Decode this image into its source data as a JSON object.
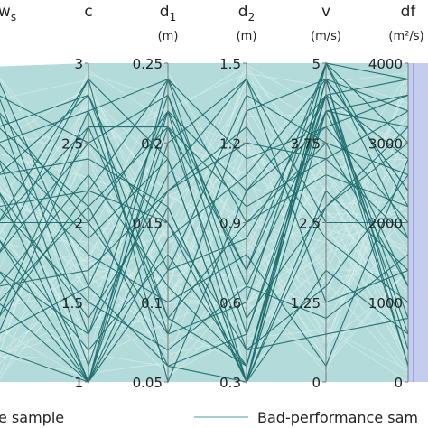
{
  "chart_data": {
    "type": "parallel_coordinates",
    "axes": [
      {
        "title": "w",
        "title_sub": "s",
        "unit": "",
        "range": [
          0,
          4
        ],
        "ticks": []
      },
      {
        "title": "c",
        "title_sub": "",
        "unit": "",
        "range": [
          1,
          3
        ],
        "ticks": [
          "3",
          "2.5",
          "2",
          "1.5",
          "1"
        ]
      },
      {
        "title": "d",
        "title_sub": "1",
        "unit": "(m)",
        "range": [
          0.05,
          0.25
        ],
        "ticks": [
          "0.25",
          "0.2",
          "0.15",
          "0.1",
          "0.05"
        ]
      },
      {
        "title": "d",
        "title_sub": "2",
        "unit": "(m)",
        "range": [
          0.3,
          1.5
        ],
        "ticks": [
          "1.5",
          "1.2",
          "0.9",
          "0.6",
          "0.3"
        ]
      },
      {
        "title": "v",
        "title_sub": "",
        "unit": "(m/s)",
        "range": [
          0,
          5
        ],
        "ticks": [
          "5",
          "3.75",
          "2.5",
          "1.25",
          "0"
        ]
      },
      {
        "title": "df",
        "title_sub": "",
        "unit": "(m²/s)",
        "range": [
          0,
          4000
        ],
        "ticks": [
          "4000",
          "3000",
          "2000",
          "1000",
          "0"
        ]
      }
    ],
    "legend": [
      {
        "label": "e sample",
        "color": "#1e6e70"
      },
      {
        "label": "Bad-performance sam",
        "color": "#9fcfcf"
      }
    ],
    "colors": {
      "bad_band": "#b2dbd9",
      "bad_line": "#d4ecea",
      "good_line": "#1e6e70",
      "df_band": "#c5cdef",
      "df_band_edge": "#8a98d8",
      "axis": "#777777"
    },
    "good_samples": [
      [
        0.9,
        0.15,
        0.9,
        0.3,
        0.85,
        0.3
      ],
      [
        0.7,
        0.0,
        0.85,
        0.6,
        0.8,
        0.9
      ],
      [
        0.5,
        0.5,
        0.15,
        0.85,
        0.95,
        0.6
      ],
      [
        0.4,
        0.95,
        0.0,
        0.6,
        0.9,
        0.2
      ],
      [
        0.2,
        0.6,
        0.5,
        0.0,
        1.0,
        0.45
      ],
      [
        0.75,
        0.85,
        0.95,
        0.2,
        0.55,
        0.8
      ],
      [
        0.45,
        0.1,
        0.4,
        0.05,
        0.9,
        0.15
      ],
      [
        0.3,
        0.35,
        0.6,
        0.75,
        0.7,
        0.85
      ],
      [
        0.6,
        0.0,
        0.75,
        0.95,
        0.5,
        0.5
      ],
      [
        0.15,
        0.8,
        0.2,
        0.05,
        0.95,
        0.05
      ],
      [
        0.85,
        0.5,
        0.85,
        0.35,
        0.9,
        0.7
      ],
      [
        0.55,
        0.25,
        0.1,
        0.3,
        0.2,
        0.4
      ],
      [
        0.65,
        0.7,
        0.55,
        0.0,
        1.0,
        0.95
      ],
      [
        0.35,
        0.0,
        0.95,
        0.5,
        0.65,
        0.55
      ],
      [
        0.8,
        0.9,
        0.35,
        0.9,
        0.75,
        0.3
      ],
      [
        0.25,
        0.55,
        0.8,
        0.1,
        0.3,
        0.65
      ],
      [
        0.95,
        0.3,
        0.05,
        0.0,
        0.85,
        0.8
      ],
      [
        0.1,
        0.0,
        0.45,
        0.65,
        0.95,
        0.1
      ],
      [
        0.5,
        0.95,
        0.7,
        0.0,
        0.6,
        0.35
      ],
      [
        0.7,
        0.4,
        0.25,
        0.4,
        0.05,
        0.7
      ],
      [
        0.4,
        0.75,
        0.9,
        0.15,
        0.85,
        0.9
      ],
      [
        0.6,
        0.2,
        0.6,
        0.8,
        0.45,
        0.25
      ],
      [
        0.3,
        0.65,
        0.3,
        0.05,
        0.95,
        0.6
      ],
      [
        0.85,
        0.05,
        0.8,
        0.55,
        0.7,
        0.45
      ],
      [
        0.2,
        0.85,
        0.15,
        0.25,
        1.0,
        0.75
      ],
      [
        0.75,
        0.45,
        0.7,
        0.0,
        0.35,
        0.15
      ],
      [
        0.45,
        0.0,
        0.35,
        0.45,
        0.9,
        0.95
      ],
      [
        0.55,
        0.6,
        0.95,
        0.7,
        0.8,
        0.5
      ],
      [
        0.9,
        0.75,
        0.5,
        0.1,
        0.15,
        0.2
      ],
      [
        0.15,
        0.3,
        0.85,
        0.0,
        0.95,
        0.85
      ],
      [
        0.65,
        0.9,
        0.2,
        0.5,
        0.75,
        0.65
      ],
      [
        0.35,
        0.15,
        0.65,
        0.95,
        0.25,
        0.35
      ],
      [
        0.8,
        0.55,
        0.05,
        0.15,
        0.9,
        0.05
      ],
      [
        0.25,
        0.0,
        0.55,
        0.0,
        0.55,
        0.75
      ],
      [
        0.5,
        0.8,
        0.8,
        0.35,
        1.0,
        0.55
      ]
    ]
  }
}
